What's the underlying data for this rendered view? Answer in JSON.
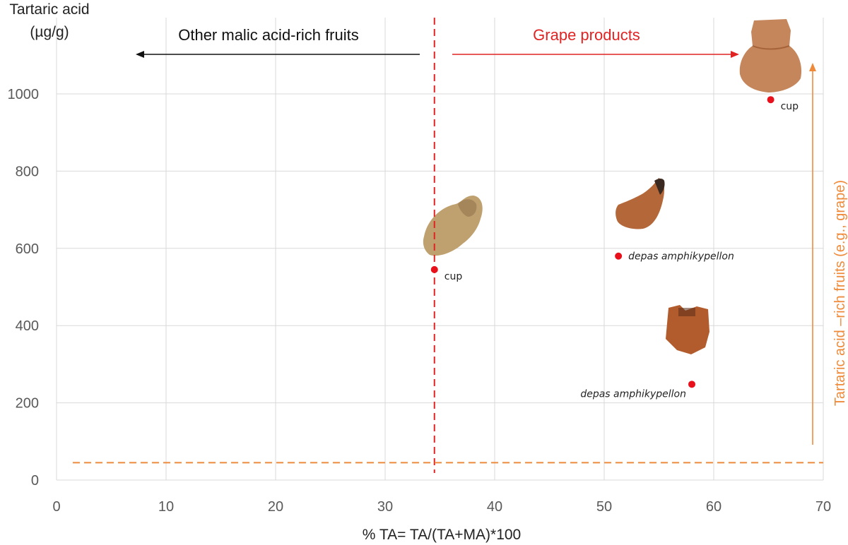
{
  "chart_data": {
    "type": "scatter",
    "title": "",
    "ylabel_line1": "Tartaric acid",
    "ylabel_line2": "(µg/g)",
    "xlabel": "% TA= TA/(TA+MA)*100",
    "xlim": [
      0,
      70
    ],
    "ylim": [
      0,
      1100
    ],
    "xticks": [
      0,
      10,
      20,
      30,
      40,
      50,
      60,
      70
    ],
    "yticks": [
      0,
      200,
      400,
      600,
      800,
      1000
    ],
    "grid": true,
    "points": [
      {
        "x": 34.5,
        "y": 545,
        "label": "cup",
        "italic": false,
        "label_side": "right"
      },
      {
        "x": 51.3,
        "y": 580,
        "label": "depas amphikypellon",
        "italic": true,
        "label_side": "right"
      },
      {
        "x": 58.0,
        "y": 248,
        "label": "depas amphikypellon",
        "italic": true,
        "label_side": "left"
      },
      {
        "x": 65.2,
        "y": 985,
        "label": "cup",
        "italic": false,
        "label_side": "right"
      }
    ],
    "threshold_x": 34.5,
    "threshold_y": 45,
    "annotations": {
      "left_arrow_text": "Other malic acid-rich fruits",
      "right_arrow_text": "Grape products",
      "vertical_arrow_text": "Tartaric acid –rich fruits (e.g., grape)"
    },
    "colors": {
      "point": "#e8101a",
      "red_line": "#e02424",
      "orange_line": "#ee8a3a",
      "black_arrow": "#111111",
      "grid": "#d9d9d9"
    }
  }
}
